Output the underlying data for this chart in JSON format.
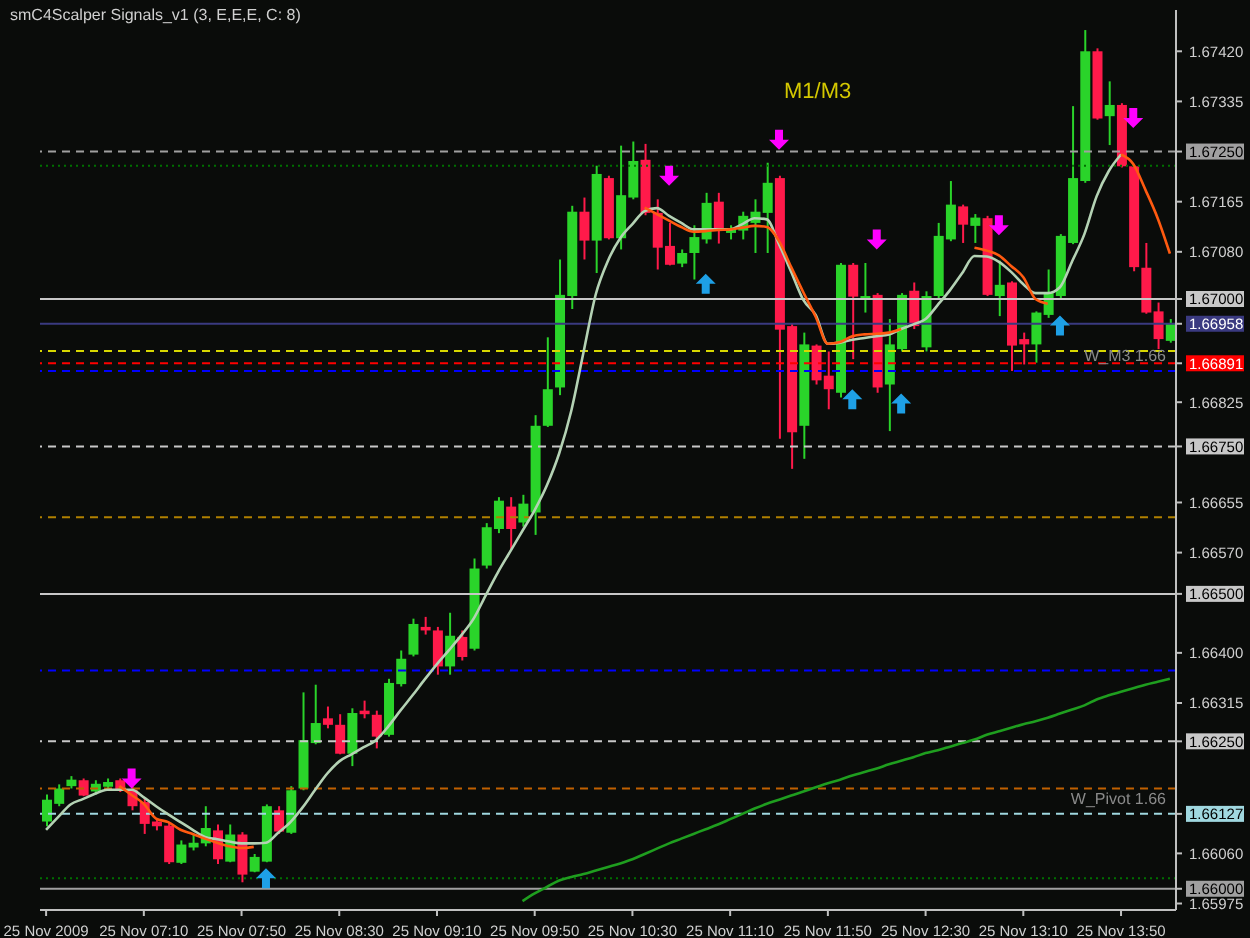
{
  "chart_data": {
    "type": "candlestick",
    "title": "smC4Scalper Signals_v1 (3, E,E,E, C: 8)",
    "annotations": [
      "M1/M3"
    ],
    "categories": [
      "25 Nov 2009",
      null,
      null,
      null,
      null,
      null,
      null,
      null,
      "25 Nov 07:10",
      null,
      null,
      null,
      null,
      null,
      null,
      null,
      "25 Nov 07:50",
      null,
      null,
      null,
      null,
      null,
      null,
      null,
      "25 Nov 08:30",
      null,
      null,
      null,
      null,
      null,
      null,
      null,
      "25 Nov 09:10",
      null,
      null,
      null,
      null,
      null,
      null,
      null,
      "25 Nov 09:50",
      null,
      null,
      null,
      null,
      null,
      null,
      null,
      "25 Nov 10:30",
      null,
      null,
      null,
      null,
      null,
      null,
      null,
      "25 Nov 11:10",
      null,
      null,
      null,
      null,
      null,
      null,
      null,
      "25 Nov 11:50",
      null,
      null,
      null,
      null,
      null,
      null,
      null,
      "25 Nov 12:30",
      null,
      null,
      null,
      null,
      null,
      null,
      null,
      "25 Nov 13:10",
      null,
      null,
      null,
      null,
      null,
      null,
      null,
      "25 Nov 13:50",
      null,
      null,
      null,
      null
    ],
    "ohlc": [
      [
        1.66114,
        1.6616,
        1.66106,
        1.66151
      ],
      [
        1.66144,
        1.66177,
        1.6614,
        1.6617
      ],
      [
        1.66174,
        1.66191,
        1.6617,
        1.66185
      ],
      [
        1.66184,
        1.66187,
        1.66157,
        1.66158
      ],
      [
        1.66165,
        1.66184,
        1.6616,
        1.66178
      ],
      [
        1.66173,
        1.66187,
        1.6617,
        1.66181
      ],
      [
        1.66184,
        1.66187,
        1.66164,
        1.66168
      ],
      [
        1.66168,
        1.66177,
        1.66133,
        1.6614
      ],
      [
        1.66147,
        1.66153,
        1.66093,
        1.6611
      ],
      [
        1.66114,
        1.6612,
        1.66099,
        1.66106
      ],
      [
        1.66107,
        1.66113,
        1.66042,
        1.66045
      ],
      [
        1.66044,
        1.66082,
        1.66042,
        1.66075
      ],
      [
        1.6607,
        1.66093,
        1.66065,
        1.66078
      ],
      [
        1.66077,
        1.6614,
        1.66072,
        1.66103
      ],
      [
        1.66099,
        1.66109,
        1.66042,
        1.6605
      ],
      [
        1.66046,
        1.66109,
        1.66045,
        1.66092
      ],
      [
        1.66092,
        1.66096,
        1.66011,
        1.66024
      ],
      [
        1.66029,
        1.66059,
        1.66028,
        1.66054
      ],
      [
        1.66046,
        1.66143,
        1.66045,
        1.6614
      ],
      [
        1.66133,
        1.6614,
        1.66093,
        1.66097
      ],
      [
        1.66095,
        1.66174,
        1.66093,
        1.66167
      ],
      [
        1.6617,
        1.66333,
        1.66167,
        1.66252
      ],
      [
        1.66247,
        1.66346,
        1.66245,
        1.66281
      ],
      [
        1.66289,
        1.66309,
        1.66272,
        1.66278
      ],
      [
        1.66278,
        1.66296,
        1.66228,
        1.66229
      ],
      [
        1.66229,
        1.66306,
        1.66208,
        1.66298
      ],
      [
        1.66302,
        1.66319,
        1.66289,
        1.66296
      ],
      [
        1.66295,
        1.66302,
        1.66238,
        1.66258
      ],
      [
        1.66261,
        1.66356,
        1.66258,
        1.66349
      ],
      [
        1.66347,
        1.66404,
        1.66343,
        1.6639
      ],
      [
        1.66397,
        1.66458,
        1.66394,
        1.66449
      ],
      [
        1.66444,
        1.66461,
        1.66431,
        1.66438
      ],
      [
        1.66438,
        1.66444,
        1.66363,
        1.66377
      ],
      [
        1.66377,
        1.66468,
        1.66363,
        1.66429
      ],
      [
        1.66427,
        1.66438,
        1.66387,
        1.66393
      ],
      [
        1.66407,
        1.6656,
        1.66404,
        1.66543
      ],
      [
        1.66548,
        1.6662,
        1.66543,
        1.66613
      ],
      [
        1.6661,
        1.66664,
        1.66603,
        1.66658
      ],
      [
        1.66648,
        1.66664,
        1.66576,
        1.6661
      ],
      [
        1.66621,
        1.66668,
        1.66614,
        1.66653
      ],
      [
        1.66638,
        1.66803,
        1.666,
        1.66785
      ],
      [
        1.66785,
        1.66935,
        1.66783,
        1.66847
      ],
      [
        1.6685,
        1.67067,
        1.66837,
        1.67007
      ],
      [
        1.67005,
        1.67158,
        1.66983,
        1.67148
      ],
      [
        1.67148,
        1.67172,
        1.67067,
        1.67099
      ],
      [
        1.67099,
        1.67226,
        1.67044,
        1.67212
      ],
      [
        1.67205,
        1.67209,
        1.67101,
        1.67103
      ],
      [
        1.67103,
        1.6726,
        1.67084,
        1.67176
      ],
      [
        1.67172,
        1.67267,
        1.67169,
        1.67234
      ],
      [
        1.67236,
        1.67263,
        1.67142,
        1.67146
      ],
      [
        1.67146,
        1.67169,
        1.6705,
        1.67087
      ],
      [
        1.6709,
        1.67129,
        1.67057,
        1.67058
      ],
      [
        1.6706,
        1.67084,
        1.67054,
        1.67078
      ],
      [
        1.67078,
        1.67125,
        1.67033,
        1.67105
      ],
      [
        1.67101,
        1.6718,
        1.67094,
        1.67163
      ],
      [
        1.67165,
        1.6718,
        1.67094,
        1.6712
      ],
      [
        1.67112,
        1.67125,
        1.67101,
        1.6712
      ],
      [
        1.67116,
        1.67148,
        1.67101,
        1.67141
      ],
      [
        1.67129,
        1.67169,
        1.67078,
        1.67148
      ],
      [
        1.67146,
        1.67231,
        1.67078,
        1.67197
      ],
      [
        1.67205,
        1.67209,
        1.66763,
        1.66948
      ],
      [
        1.66954,
        1.66959,
        1.66712,
        1.66774
      ],
      [
        1.66785,
        1.66943,
        1.66729,
        1.66923
      ],
      [
        1.66921,
        1.66923,
        1.66855,
        1.66862
      ],
      [
        1.6687,
        1.66911,
        1.66813,
        1.66847
      ],
      [
        1.66841,
        1.67061,
        1.66833,
        1.67058
      ],
      [
        1.67058,
        1.67061,
        1.66898,
        1.67004
      ],
      [
        1.66999,
        1.67061,
        1.66977,
        1.67005
      ],
      [
        1.67007,
        1.6701,
        1.66841,
        1.6685
      ],
      [
        1.66855,
        1.66966,
        1.66776,
        1.66923
      ],
      [
        1.66915,
        1.6701,
        1.66911,
        1.67007
      ],
      [
        1.67014,
        1.67028,
        1.66949,
        1.66954
      ],
      [
        1.66918,
        1.67013,
        1.66911,
        1.67005
      ],
      [
        1.67005,
        1.67129,
        1.66999,
        1.67107
      ],
      [
        1.67101,
        1.672,
        1.67098,
        1.6716
      ],
      [
        1.67157,
        1.6716,
        1.67095,
        1.67126
      ],
      [
        1.67124,
        1.67144,
        1.67095,
        1.67138
      ],
      [
        1.67137,
        1.67141,
        1.67005,
        1.67007
      ],
      [
        1.67005,
        1.67065,
        1.66971,
        1.67024
      ],
      [
        1.67028,
        1.6703,
        1.66878,
        1.66921
      ],
      [
        1.66932,
        1.66943,
        1.66889,
        1.66923
      ],
      [
        1.66923,
        1.66979,
        1.66892,
        1.66977
      ],
      [
        1.66973,
        1.6705,
        1.66968,
        1.67011
      ],
      [
        1.67005,
        1.6711,
        1.66999,
        1.67107
      ],
      [
        1.67095,
        1.67327,
        1.67093,
        1.67205
      ],
      [
        1.672,
        1.67456,
        1.67197,
        1.6742
      ],
      [
        1.6742,
        1.67425,
        1.67304,
        1.67306
      ],
      [
        1.6731,
        1.67369,
        1.67261,
        1.67329
      ],
      [
        1.67329,
        1.67332,
        1.67223,
        1.67225
      ],
      [
        1.67225,
        1.67227,
        1.67047,
        1.67054
      ],
      [
        1.67053,
        1.67095,
        1.66975,
        1.66977
      ],
      [
        1.66979,
        1.66994,
        1.66915,
        1.66932
      ],
      [
        1.66929,
        1.66966,
        1.66926,
        1.66958
      ]
    ],
    "colors": [
      "#2ad42a",
      "#2ad42a",
      "#2ad42a",
      "#ff1a4a",
      "#2ad42a",
      "#2ad42a",
      "#ff1a4a",
      "#ff1a4a",
      "#ff1a4a",
      "#ff1a4a",
      "#ff1a4a",
      "#2ad42a",
      "#2ad42a",
      "#2ad42a",
      "#ff1a4a",
      "#2ad42a",
      "#ff1a4a",
      "#2ad42a",
      "#2ad42a",
      "#ff1a4a",
      "#2ad42a",
      "#2ad42a",
      "#2ad42a",
      "#ff1a4a",
      "#ff1a4a",
      "#2ad42a",
      "#ff1a4a",
      "#ff1a4a",
      "#2ad42a",
      "#2ad42a",
      "#2ad42a",
      "#ff1a4a",
      "#ff1a4a",
      "#2ad42a",
      "#ff1a4a",
      "#2ad42a",
      "#2ad42a",
      "#2ad42a",
      "#ff1a4a",
      "#2ad42a",
      "#2ad42a",
      "#2ad42a",
      "#2ad42a",
      "#2ad42a",
      "#ff1a4a",
      "#2ad42a",
      "#ff1a4a",
      "#2ad42a",
      "#2ad42a",
      "#ff1a4a",
      "#ff1a4a",
      "#ff1a4a",
      "#2ad42a",
      "#2ad42a",
      "#2ad42a",
      "#ff1a4a",
      "#2ad42a",
      "#2ad42a",
      "#2ad42a",
      "#2ad42a",
      "#ff1a4a",
      "#ff1a4a",
      "#2ad42a",
      "#ff1a4a",
      "#ff1a4a",
      "#2ad42a",
      "#ff1a4a",
      "#2ad42a",
      "#ff1a4a",
      "#2ad42a",
      "#2ad42a",
      "#ff1a4a",
      "#2ad42a",
      "#2ad42a",
      "#2ad42a",
      "#ff1a4a",
      "#2ad42a",
      "#ff1a4a",
      "#2ad42a",
      "#ff1a4a",
      "#ff1a4a",
      "#2ad42a",
      "#2ad42a",
      "#2ad42a",
      "#2ad42a",
      "#2ad42a",
      "#ff1a4a",
      "#2ad42a",
      "#ff1a4a",
      "#ff1a4a",
      "#ff1a4a",
      "#ff1a4a",
      "#2ad42a"
    ],
    "series": [
      {
        "type": "line",
        "color": "#b4d2b4",
        "values": [
          1.661,
          1.66122,
          1.66143,
          1.66152,
          1.66161,
          1.66168,
          1.66168,
          1.66168,
          1.66155,
          1.6614,
          1.66126,
          1.66113,
          1.661,
          1.66088,
          1.66084,
          1.6608,
          1.66077,
          1.66077,
          1.66078,
          1.66095,
          1.66113,
          1.66138,
          1.66167,
          1.66195,
          1.66216,
          1.66228,
          1.6624,
          1.66252,
          1.66275,
          1.66302,
          1.66328,
          1.66355,
          1.66381,
          1.66405,
          1.6643,
          1.66458,
          1.66498,
          1.66537,
          1.66572,
          1.66607,
          1.66642,
          1.66684,
          1.66738,
          1.66811,
          1.6691,
          1.67008,
          1.67065,
          1.67103,
          1.67127,
          1.67149,
          1.67154,
          1.67141,
          1.67129,
          1.67118,
          1.67118,
          1.67118,
          1.67118,
          1.67127,
          1.67137,
          1.67135,
          1.67093,
          1.67046,
          1.66998,
          1.66973,
          1.66924,
          1.66926,
          1.66931,
          1.66934,
          1.66937,
          1.6694,
          1.66949,
          1.66957,
          1.66966,
          1.6699,
          1.67015,
          1.67044,
          1.67073,
          1.67072,
          1.67063,
          1.67046,
          1.67025,
          1.6701,
          1.6701,
          1.6702,
          1.67064,
          1.6711,
          1.67174,
          1.67217,
          1.67245,
          null,
          null,
          null,
          null
        ]
      },
      {
        "type": "line",
        "color": "#ff5a10",
        "values": [
          null,
          null,
          null,
          null,
          null,
          null,
          1.66174,
          1.66159,
          1.66144,
          1.66119,
          1.66113,
          1.661,
          1.66093,
          1.66085,
          1.66078,
          1.66072,
          1.66069,
          1.66071,
          null,
          null,
          null,
          null,
          null,
          null,
          null,
          null,
          null,
          null,
          null,
          null,
          null,
          null,
          null,
          null,
          null,
          null,
          null,
          null,
          null,
          null,
          null,
          null,
          null,
          null,
          null,
          null,
          null,
          null,
          null,
          1.67155,
          1.67144,
          1.67133,
          1.67122,
          1.67114,
          1.67115,
          1.67117,
          1.67118,
          1.67121,
          1.67124,
          1.67122,
          1.67098,
          1.67054,
          1.67011,
          1.6697,
          1.66924,
          1.66927,
          1.66937,
          1.6694,
          1.66941,
          1.66943,
          1.66949,
          null,
          null,
          null,
          null,
          null,
          1.67087,
          1.67082,
          1.67074,
          1.67056,
          1.67037,
          1.67,
          1.66992,
          null,
          null,
          null,
          null,
          null,
          1.67245,
          1.67229,
          1.67185,
          1.67137,
          1.67077
        ]
      },
      {
        "type": "line",
        "color": "#1f9e1f",
        "values": [
          null,
          null,
          null,
          null,
          null,
          null,
          null,
          null,
          null,
          null,
          null,
          null,
          null,
          null,
          null,
          null,
          null,
          null,
          null,
          null,
          null,
          null,
          null,
          null,
          null,
          null,
          null,
          null,
          null,
          null,
          null,
          null,
          null,
          null,
          null,
          null,
          null,
          null,
          null,
          1.65979,
          1.65992,
          1.66003,
          1.66014,
          1.6602,
          1.66025,
          1.66031,
          1.66037,
          1.66043,
          1.6605,
          1.66059,
          1.66068,
          1.66077,
          1.66085,
          1.66093,
          1.66101,
          1.66109,
          1.66118,
          1.66127,
          1.66136,
          1.66144,
          1.66151,
          1.66158,
          1.66165,
          1.66172,
          1.66179,
          1.66185,
          1.66192,
          1.66198,
          1.66204,
          1.66211,
          1.66217,
          1.66223,
          1.6623,
          1.66235,
          1.66241,
          1.66247,
          1.66253,
          1.66261,
          1.66267,
          1.66273,
          1.66279,
          1.66284,
          1.6629,
          1.66297,
          1.66304,
          1.66311,
          1.66321,
          1.66328,
          1.66334,
          1.6634,
          1.66346,
          1.66351,
          1.66356
        ]
      },
      {
        "type": "scatter",
        "color": "#ff00ff",
        "values": [
          null,
          null,
          null,
          null,
          null,
          null,
          null,
          1.66187,
          null,
          null,
          null,
          null,
          null,
          null,
          null,
          null,
          null,
          null,
          null,
          null,
          null,
          null,
          null,
          null,
          null,
          null,
          null,
          null,
          null,
          null,
          null,
          null,
          null,
          null,
          null,
          null,
          null,
          null,
          null,
          null,
          null,
          null,
          null,
          null,
          null,
          null,
          null,
          null,
          null,
          null,
          null,
          1.67209,
          null,
          null,
          null,
          null,
          null,
          null,
          null,
          null,
          1.6727,
          null,
          null,
          null,
          null,
          null,
          null,
          null,
          1.67101,
          null,
          null,
          null,
          null,
          null,
          null,
          null,
          null,
          null,
          1.67125,
          null,
          null,
          null,
          null,
          null,
          null,
          null,
          null,
          null,
          null,
          1.67307,
          null,
          null,
          null
        ]
      },
      {
        "type": "scatter",
        "color": "#1ea0e6",
        "values": [
          null,
          null,
          null,
          null,
          null,
          null,
          null,
          null,
          null,
          null,
          null,
          null,
          null,
          null,
          null,
          null,
          null,
          null,
          1.66018,
          null,
          null,
          null,
          null,
          null,
          null,
          null,
          null,
          null,
          null,
          null,
          null,
          null,
          null,
          null,
          null,
          null,
          null,
          null,
          null,
          null,
          null,
          null,
          null,
          null,
          null,
          null,
          null,
          null,
          null,
          null,
          null,
          null,
          null,
          null,
          1.67026,
          null,
          null,
          null,
          null,
          null,
          null,
          null,
          null,
          null,
          null,
          null,
          1.6683,
          null,
          null,
          null,
          1.66823,
          null,
          null,
          null,
          null,
          null,
          null,
          null,
          null,
          null,
          null,
          null,
          null,
          1.66955,
          null,
          null,
          null,
          null,
          null,
          null,
          null,
          null,
          null
        ]
      }
    ],
    "ylim": [
      1.65964,
      1.6749
    ],
    "yticks": [
      {
        "value": 1.6742,
        "label": "1.67420"
      },
      1.67335,
      1.67165,
      {
        "value": 1.6708,
        "label": "1.67080"
      },
      1.66825,
      1.66655,
      {
        "value": 1.6657,
        "label": "1.66570"
      },
      {
        "value": 1.664,
        "label": "1.66400"
      },
      1.66315,
      {
        "value": 1.6606,
        "label": "1.66060"
      },
      1.65975,
      {
        "value": 1.6725,
        "label": "1.67250"
      },
      {
        "value": 1.67,
        "label": "1.67000"
      },
      1.66958,
      1.66891,
      {
        "value": 1.6675,
        "label": "1.66750"
      },
      {
        "value": 1.665,
        "label": "1.66500"
      },
      {
        "value": 1.6625,
        "label": "1.66250"
      },
      1.66127,
      {
        "value": 1.66,
        "label": "1.66000"
      }
    ],
    "ref_lines": [
      {
        "axis": "y",
        "value": 1.6725,
        "color": "#a0a0a0",
        "line_style": "dashed"
      },
      {
        "axis": "y",
        "value": 1.67226,
        "color": "#007000",
        "line_style": "dotted"
      },
      {
        "axis": "y",
        "value": 1.67,
        "color": "#c8c8c8",
        "line_style": "solid"
      },
      {
        "axis": "y",
        "value": 1.66958,
        "color": "#3a3a80",
        "line_style": "solid"
      },
      {
        "axis": "y",
        "value": 1.66912,
        "color": "#d8d800",
        "line_style": "dashed"
      },
      {
        "axis": "y",
        "value": 1.66891,
        "color": "#ff0000",
        "line_style": "dashed"
      },
      {
        "axis": "y",
        "value": 1.66878,
        "color": "#0000ff",
        "line_style": "dashed",
        "label": "W_M3 1.66"
      },
      {
        "axis": "y",
        "value": 1.6675,
        "color": "#c8c8c8",
        "line_style": "dashed"
      },
      {
        "axis": "y",
        "value": 1.6663,
        "color": "#b08000",
        "line_style": "dashed"
      },
      {
        "axis": "y",
        "value": 1.665,
        "color": "#c8c8c8",
        "line_style": "solid"
      },
      {
        "axis": "y",
        "value": 1.6637,
        "color": "#0000ff",
        "line_style": "dashed"
      },
      {
        "axis": "y",
        "value": 1.6625,
        "color": "#c8c8c8",
        "line_style": "dashed"
      },
      {
        "axis": "y",
        "value": 1.6617,
        "color": "#c06000",
        "line_style": "dashed"
      },
      {
        "axis": "y",
        "value": 1.66127,
        "color": "#a0d8e0",
        "line_style": "dashed",
        "label": "W_Pivot 1.66"
      },
      {
        "axis": "y",
        "value": 1.66018,
        "color": "#007000",
        "line_style": "dotted"
      },
      {
        "axis": "y",
        "value": 1.66,
        "color": "#a0a0a0",
        "line_style": "solid"
      }
    ]
  }
}
